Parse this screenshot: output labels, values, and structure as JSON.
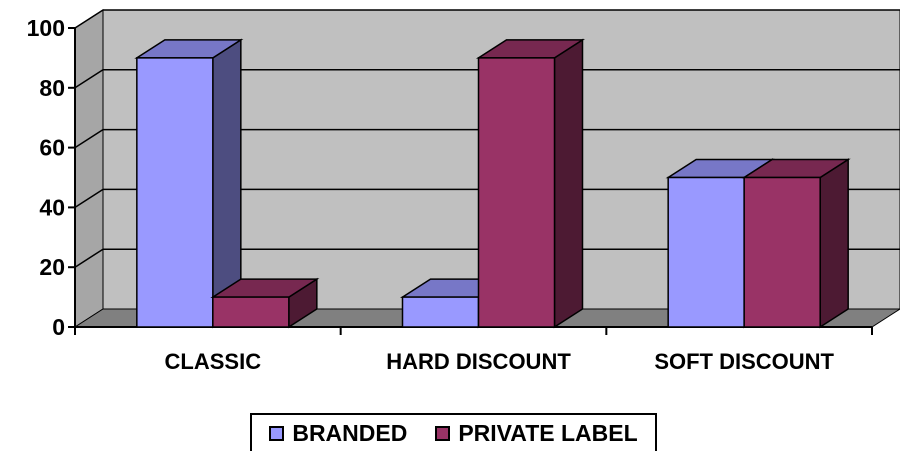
{
  "chart_data": {
    "type": "bar",
    "categories": [
      "CLASSIC",
      "HARD DISCOUNT",
      "SOFT DISCOUNT"
    ],
    "series": [
      {
        "name": "BRANDED",
        "values": [
          90,
          10,
          50
        ],
        "color": "#9999ff"
      },
      {
        "name": "PRIVATE LABEL",
        "values": [
          10,
          90,
          50
        ],
        "color": "#993366"
      }
    ],
    "title": "",
    "xlabel": "",
    "ylabel": "",
    "ylim": [
      0,
      100
    ],
    "y_ticks": [
      0,
      20,
      40,
      60,
      80,
      100
    ],
    "y_tick_labels": [
      "0",
      "20",
      "40",
      "60",
      "80",
      "100"
    ],
    "grid": true,
    "style": "3d-clustered-column",
    "wall_color": "#c0c0c0",
    "floor_color": "#808080",
    "legend_position": "bottom"
  }
}
